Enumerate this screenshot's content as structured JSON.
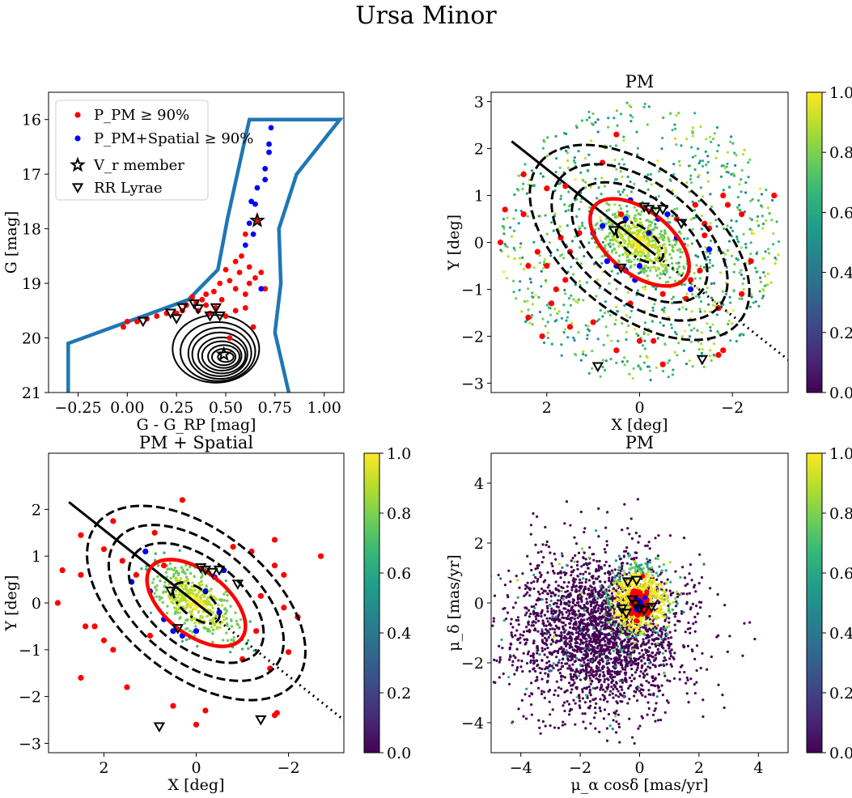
{
  "figure": {
    "title": "Ursa Minor"
  },
  "colors": {
    "member_pm": "#ff0000",
    "member_pm_spatial": "#0000ff",
    "cmd_box": "#1f77b4",
    "ellipse_main": "#ff0000",
    "ink": "#000000"
  },
  "colormap": {
    "name": "viridis",
    "stops": [
      "#440154",
      "#482878",
      "#3e4989",
      "#31688e",
      "#26828e",
      "#1f9e89",
      "#35b779",
      "#6ece58",
      "#b5de2b",
      "#fde725"
    ],
    "ticks": [
      "0.0",
      "0.2",
      "0.4",
      "0.6",
      "0.8",
      "1.0"
    ]
  },
  "chart_data": [
    {
      "id": "cmd",
      "type": "scatter",
      "title": "",
      "xlabel": "G - G_RP [mag]",
      "ylabel": "G [mag]",
      "xlim": [
        -0.4,
        1.1
      ],
      "ylim": [
        21,
        15.5
      ],
      "xticks": [
        -0.25,
        0.0,
        0.25,
        0.5,
        0.75,
        1.0
      ],
      "xtick_labels": [
        "−0.25",
        "0.00",
        "0.25",
        "0.50",
        "0.75",
        "1.00"
      ],
      "yticks": [
        16,
        17,
        18,
        19,
        20,
        21
      ],
      "ytick_labels": [
        "16",
        "17",
        "18",
        "19",
        "20",
        "21"
      ],
      "legend": {
        "location": "upper-left",
        "entries": [
          {
            "label": "P_PM ≥ 90%",
            "marker": "dot",
            "color": "#ff0000"
          },
          {
            "label": "P_PM+Spatial ≥ 90%",
            "marker": "dot",
            "color": "#0000ff"
          },
          {
            "label": "V_r member",
            "marker": "star"
          },
          {
            "label": "RR Lyrae",
            "marker": "triangle-down"
          }
        ]
      },
      "selection_box": [
        [
          -0.3,
          21
        ],
        [
          -0.3,
          20.1
        ],
        [
          0.31,
          19.3
        ],
        [
          0.46,
          18.75
        ],
        [
          0.51,
          17.8
        ],
        [
          0.62,
          16
        ],
        [
          1.08,
          16
        ],
        [
          0.86,
          17
        ],
        [
          0.77,
          18
        ],
        [
          0.78,
          19.0
        ],
        [
          0.75,
          19.9
        ],
        [
          0.82,
          21
        ]
      ],
      "density_contours": [
        {
          "center": [
            0.45,
            20.2
          ],
          "rx": 0.22,
          "ry": 0.62
        },
        {
          "center": [
            0.46,
            20.25
          ],
          "rx": 0.19,
          "ry": 0.54
        },
        {
          "center": [
            0.47,
            20.28
          ],
          "rx": 0.16,
          "ry": 0.47
        },
        {
          "center": [
            0.47,
            20.3
          ],
          "rx": 0.14,
          "ry": 0.4
        },
        {
          "center": [
            0.48,
            20.32
          ],
          "rx": 0.12,
          "ry": 0.33
        },
        {
          "center": [
            0.48,
            20.33
          ],
          "rx": 0.1,
          "ry": 0.27
        },
        {
          "center": [
            0.49,
            20.34
          ],
          "rx": 0.08,
          "ry": 0.21
        },
        {
          "center": [
            0.49,
            20.35
          ],
          "rx": 0.06,
          "ry": 0.15
        },
        {
          "center": [
            0.5,
            20.35
          ],
          "rx": 0.04,
          "ry": 0.09
        }
      ],
      "pm_members": [
        [
          0.66,
          17.85
        ],
        [
          0.6,
          18.1
        ],
        [
          0.58,
          18.5
        ],
        [
          0.55,
          18.6
        ],
        [
          0.62,
          18.7
        ],
        [
          0.65,
          18.9
        ],
        [
          0.57,
          18.8
        ],
        [
          0.5,
          18.75
        ],
        [
          0.52,
          18.95
        ],
        [
          0.47,
          19.0
        ],
        [
          0.44,
          19.15
        ],
        [
          0.4,
          19.2
        ],
        [
          0.38,
          19.3
        ],
        [
          0.35,
          19.35
        ],
        [
          0.3,
          19.4
        ],
        [
          0.28,
          19.5
        ],
        [
          0.25,
          19.55
        ],
        [
          0.2,
          19.55
        ],
        [
          0.15,
          19.6
        ],
        [
          0.1,
          19.65
        ],
        [
          0.05,
          19.7
        ],
        [
          0.0,
          19.7
        ],
        [
          -0.02,
          19.8
        ],
        [
          0.4,
          19.4
        ],
        [
          0.42,
          19.55
        ],
        [
          0.45,
          19.45
        ],
        [
          0.5,
          19.6
        ],
        [
          0.55,
          19.1
        ],
        [
          0.6,
          19.2
        ],
        [
          0.62,
          19.0
        ],
        [
          0.68,
          18.8
        ],
        [
          0.7,
          19.1
        ],
        [
          0.55,
          19.5
        ],
        [
          0.6,
          19.45
        ],
        [
          0.64,
          19.8
        ],
        [
          0.52,
          20.0
        ],
        [
          0.48,
          19.3
        ],
        [
          0.36,
          19.5
        ],
        [
          0.33,
          19.25
        ]
      ],
      "pm_spatial_members": [
        [
          0.73,
          16.15
        ],
        [
          0.72,
          16.45
        ],
        [
          0.72,
          16.6
        ],
        [
          0.7,
          16.9
        ],
        [
          0.7,
          17.1
        ],
        [
          0.66,
          17.25
        ],
        [
          0.65,
          17.55
        ],
        [
          0.63,
          17.5
        ],
        [
          0.62,
          17.9
        ],
        [
          0.6,
          18.3
        ],
        [
          0.64,
          18.1
        ],
        [
          0.68,
          19.1
        ]
      ],
      "vr_members": [
        [
          0.66,
          17.85
        ],
        [
          0.49,
          20.3
        ]
      ],
      "rr_lyrae": [
        [
          0.08,
          19.7
        ],
        [
          0.22,
          19.55
        ],
        [
          0.28,
          19.45
        ],
        [
          0.34,
          19.38
        ],
        [
          0.36,
          19.47
        ],
        [
          0.42,
          19.6
        ],
        [
          0.45,
          19.45
        ],
        [
          0.47,
          19.6
        ],
        [
          0.25,
          19.65
        ]
      ]
    },
    {
      "id": "spatial-pm",
      "type": "scatter",
      "title": "PM",
      "xlabel": "X [deg]",
      "ylabel": "Y [deg]",
      "xlim": [
        3.2,
        -3.2
      ],
      "ylim": [
        -3.2,
        3.2
      ],
      "xticks": [
        2,
        0,
        -2
      ],
      "xtick_labels": [
        "2",
        "0",
        "−2"
      ],
      "yticks": [
        -3,
        -2,
        -1,
        0,
        1,
        2,
        3
      ],
      "ytick_labels": [
        "−3",
        "−2",
        "−1",
        "0",
        "1",
        "2",
        "3"
      ],
      "colorbar": true,
      "major_axis_line": {
        "angle_deg": 38,
        "solid_from": 3.5,
        "solid_to": -0.4,
        "dotted_to": -4.8
      },
      "ellipses": [
        {
          "rx": 0.6,
          "ry": 0.3,
          "angle_deg": 38,
          "style": "dashdot"
        },
        {
          "rx": 1.25,
          "ry": 0.67,
          "angle_deg": 38,
          "style": "solid-red"
        },
        {
          "rx": 1.7,
          "ry": 0.95,
          "angle_deg": 38,
          "style": "dashed"
        },
        {
          "rx": 2.2,
          "ry": 1.25,
          "angle_deg": 38,
          "style": "dashed"
        },
        {
          "rx": 2.75,
          "ry": 1.55,
          "angle_deg": 38,
          "style": "dashed"
        }
      ],
      "field_stars": {
        "n": 900,
        "core_n": 450,
        "seed": 11
      },
      "pm_members": [
        [
          2.5,
          1.45
        ],
        [
          2.0,
          1.15
        ],
        [
          1.6,
          1.2
        ],
        [
          2.9,
          0.7
        ],
        [
          2.5,
          0.6
        ],
        [
          2.4,
          -0.5
        ],
        [
          2.0,
          -0.5
        ],
        [
          1.6,
          -0.8
        ],
        [
          1.9,
          -1.3
        ],
        [
          1.7,
          0.1
        ],
        [
          2.2,
          -0.2
        ],
        [
          1.8,
          -1.0
        ],
        [
          2.4,
          -1.6
        ],
        [
          2.1,
          -2.0
        ],
        [
          1.5,
          -1.8
        ],
        [
          3.0,
          0.0
        ],
        [
          0.5,
          -2.3
        ],
        [
          0.0,
          -2.1
        ],
        [
          -0.3,
          -2.1
        ],
        [
          -0.5,
          -2.6
        ],
        [
          -1.0,
          -1.2
        ],
        [
          -1.7,
          -1.4
        ],
        [
          -1.5,
          0.3
        ],
        [
          -1.2,
          0.8
        ],
        [
          -1.9,
          0.8
        ],
        [
          -2.2,
          0.6
        ],
        [
          -2.4,
          -0.4
        ],
        [
          -2.2,
          -1.1
        ],
        [
          -1.3,
          -0.6
        ],
        [
          -1.7,
          -2.4
        ],
        [
          -1.8,
          -2.3
        ],
        [
          -1.8,
          1.0
        ],
        [
          -1.4,
          0.15
        ],
        [
          -0.8,
          0.5
        ],
        [
          0.8,
          1.7
        ],
        [
          0.5,
          2.3
        ],
        [
          0.4,
          0.6
        ],
        [
          1.5,
          -0.2
        ],
        [
          -2.9,
          1.0
        ],
        [
          -1.1,
          -0.8
        ],
        [
          1.0,
          -1.7
        ],
        [
          -0.5,
          -1.1
        ],
        [
          0.2,
          -1.3
        ],
        [
          1.3,
          0.2
        ],
        [
          -1.4,
          0.4
        ]
      ],
      "pm_spatial_members": [
        [
          1.0,
          0.2
        ],
        [
          0.8,
          0.35
        ],
        [
          0.7,
          -0.4
        ],
        [
          0.5,
          -0.5
        ],
        [
          0.3,
          -0.6
        ],
        [
          0.0,
          -0.5
        ],
        [
          -0.2,
          0.2
        ],
        [
          -0.4,
          0.5
        ],
        [
          -0.6,
          0.6
        ],
        [
          -0.8,
          0.1
        ],
        [
          -1.1,
          -1.0
        ],
        [
          0.1,
          -0.8
        ],
        [
          0.3,
          0.5
        ],
        [
          -1.5,
          -0.15
        ],
        [
          0.2,
          0.9
        ]
      ],
      "rr_lyrae": [
        [
          0.9,
          -2.65
        ],
        [
          -1.35,
          -2.5
        ],
        [
          -0.2,
          0.7
        ],
        [
          -0.35,
          0.65
        ],
        [
          -0.5,
          0.7
        ],
        [
          -0.9,
          0.4
        ],
        [
          0.4,
          -0.55
        ],
        [
          0.55,
          0.25
        ],
        [
          -0.1,
          0.75
        ]
      ]
    },
    {
      "id": "spatial-pm-spatial",
      "type": "scatter",
      "title": "PM + Spatial",
      "xlabel": "X [deg]",
      "ylabel": "Y [deg]",
      "xlim": [
        3.2,
        -3.2
      ],
      "ylim": [
        -3.2,
        3.2
      ],
      "xticks": [
        2,
        0,
        -2
      ],
      "xtick_labels": [
        "2",
        "0",
        "−2"
      ],
      "yticks": [
        -3,
        -2,
        -1,
        0,
        1,
        2
      ],
      "ytick_labels": [
        "−3",
        "−2",
        "−1",
        "0",
        "1",
        "2"
      ],
      "colorbar": true,
      "major_axis_line": {
        "angle_deg": 38,
        "solid_from": 3.5,
        "solid_to": -0.4,
        "dotted_to": -4.8
      },
      "ellipses": [
        {
          "rx": 0.6,
          "ry": 0.3,
          "angle_deg": 38,
          "style": "dashdot"
        },
        {
          "rx": 1.25,
          "ry": 0.67,
          "angle_deg": 38,
          "style": "solid-red"
        },
        {
          "rx": 1.7,
          "ry": 0.95,
          "angle_deg": 38,
          "style": "dashed"
        },
        {
          "rx": 2.2,
          "ry": 1.25,
          "angle_deg": 38,
          "style": "dashed"
        },
        {
          "rx": 2.75,
          "ry": 1.55,
          "angle_deg": 38,
          "style": "dashed"
        }
      ],
      "field_stars": {
        "n": 0,
        "core_n": 420,
        "seed": 23
      },
      "pm_members": [
        [
          2.5,
          1.45
        ],
        [
          2.0,
          1.15
        ],
        [
          1.8,
          1.75
        ],
        [
          0.3,
          2.2
        ],
        [
          2.9,
          0.7
        ],
        [
          2.5,
          0.6
        ],
        [
          2.4,
          -0.5
        ],
        [
          2.2,
          -0.5
        ],
        [
          2.0,
          -0.8
        ],
        [
          2.5,
          -1.6
        ],
        [
          1.8,
          -1.0
        ],
        [
          1.5,
          -1.8
        ],
        [
          1.0,
          -0.7
        ],
        [
          3.0,
          0.0
        ],
        [
          0.5,
          -2.2
        ],
        [
          0.0,
          -2.6
        ],
        [
          -0.2,
          -2.3
        ],
        [
          -1.0,
          -1.2
        ],
        [
          -1.6,
          -1.4
        ],
        [
          -1.7,
          -2.4
        ],
        [
          -1.75,
          -2.35
        ],
        [
          -1.7,
          1.35
        ],
        [
          -1.2,
          1.1
        ],
        [
          -1.7,
          0.8
        ],
        [
          -1.9,
          0.6
        ],
        [
          -2.2,
          -0.3
        ],
        [
          -2.0,
          -1.05
        ],
        [
          -2.7,
          1.0
        ],
        [
          -1.4,
          0.15
        ],
        [
          -1.3,
          -0.6
        ],
        [
          0.9,
          1.5
        ],
        [
          1.6,
          0.9
        ],
        [
          1.3,
          0.6
        ],
        [
          -0.8,
          1.2
        ],
        [
          -1.9,
          -0.1
        ],
        [
          0.7,
          0.8
        ]
      ],
      "pm_spatial_members": [
        [
          1.1,
          1.1
        ],
        [
          1.0,
          0.25
        ],
        [
          0.7,
          -0.35
        ],
        [
          0.5,
          -0.6
        ],
        [
          0.3,
          -0.7
        ],
        [
          0.0,
          -0.6
        ],
        [
          -0.2,
          0.25
        ],
        [
          -0.4,
          0.55
        ],
        [
          -0.6,
          0.7
        ],
        [
          1.4,
          0.45
        ],
        [
          -0.5,
          -0.2
        ]
      ],
      "rr_lyrae": [
        [
          0.8,
          -2.65
        ],
        [
          -1.4,
          -2.5
        ],
        [
          -0.2,
          0.7
        ],
        [
          -0.35,
          0.65
        ],
        [
          -0.5,
          0.7
        ],
        [
          -0.9,
          0.4
        ],
        [
          0.4,
          -0.55
        ],
        [
          0.55,
          0.25
        ],
        [
          -0.1,
          0.75
        ]
      ]
    },
    {
      "id": "proper-motion",
      "type": "scatter",
      "title": "PM",
      "xlabel": "μ_α cosδ [mas/yr]",
      "ylabel": "μ_δ [mas/yr]",
      "xlim": [
        -5,
        5
      ],
      "ylim": [
        -5,
        5
      ],
      "xticks": [
        -4,
        -2,
        0,
        2,
        4
      ],
      "xtick_labels": [
        "−4",
        "−2",
        "0",
        "2",
        "4"
      ],
      "yticks": [
        -4,
        -2,
        0,
        2,
        4
      ],
      "ytick_labels": [
        "−4",
        "−2",
        "0",
        "2",
        "4"
      ],
      "colorbar": true,
      "field_cloud": {
        "center": [
          -1.3,
          -0.9
        ],
        "sx": 1.5,
        "sy": 1.3,
        "n": 2600,
        "seed": 5
      },
      "member_cloud": {
        "center": [
          0.0,
          0.1
        ],
        "sx": 0.45,
        "sy": 0.45,
        "n": 650,
        "seed": 7
      },
      "red_core": {
        "center": [
          0.0,
          0.0
        ],
        "sx": 0.14,
        "sy": 0.14,
        "n": 160,
        "seed": 9
      },
      "rr_lyrae": [
        [
          -0.1,
          0.75
        ],
        [
          -0.4,
          0.7
        ],
        [
          -0.6,
          -0.2
        ],
        [
          -0.45,
          -0.35
        ],
        [
          -0.25,
          0.1
        ],
        [
          0.15,
          -0.25
        ],
        [
          0.4,
          -0.15
        ],
        [
          -0.15,
          -0.05
        ],
        [
          0.0,
          -0.2
        ]
      ]
    }
  ]
}
